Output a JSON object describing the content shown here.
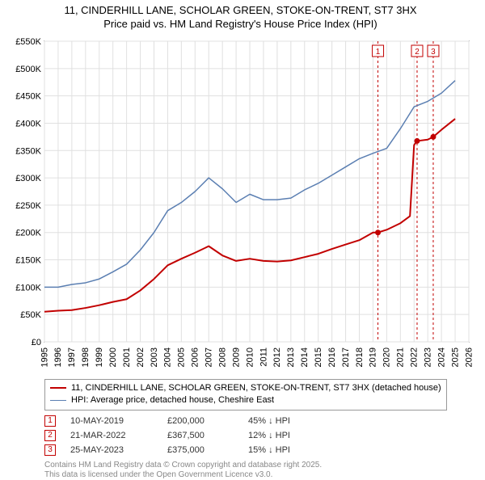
{
  "title_line1": "11, CINDERHILL LANE, SCHOLAR GREEN, STOKE-ON-TRENT, ST7 3HX",
  "title_line2": "Price paid vs. HM Land Registry's House Price Index (HPI)",
  "chart": {
    "type": "line",
    "background_color": "#ffffff",
    "grid_color": "#e0e0e0",
    "xlim": [
      1995,
      2026
    ],
    "ylim": [
      0,
      550000
    ],
    "x_ticks": [
      1995,
      1996,
      1997,
      1998,
      1999,
      2000,
      2001,
      2002,
      2003,
      2004,
      2005,
      2006,
      2007,
      2008,
      2009,
      2010,
      2011,
      2012,
      2013,
      2014,
      2015,
      2016,
      2017,
      2018,
      2019,
      2020,
      2021,
      2022,
      2023,
      2024,
      2025,
      2026
    ],
    "y_ticks": [
      0,
      50000,
      100000,
      150000,
      200000,
      250000,
      300000,
      350000,
      400000,
      450000,
      500000,
      550000
    ],
    "y_tick_labels": [
      "£0",
      "£50K",
      "£100K",
      "£150K",
      "£200K",
      "£250K",
      "£300K",
      "£350K",
      "£400K",
      "£450K",
      "£500K",
      "£550K"
    ],
    "series": [
      {
        "name": "Property price paid",
        "color": "#c20000",
        "stroke_width": 2,
        "data": [
          [
            1995,
            55000
          ],
          [
            1996,
            57000
          ],
          [
            1997,
            58000
          ],
          [
            1998,
            62000
          ],
          [
            1999,
            67000
          ],
          [
            2000,
            73000
          ],
          [
            2001,
            78000
          ],
          [
            2002,
            94000
          ],
          [
            2003,
            115000
          ],
          [
            2004,
            140000
          ],
          [
            2005,
            152000
          ],
          [
            2006,
            163000
          ],
          [
            2007,
            175000
          ],
          [
            2008,
            158000
          ],
          [
            2009,
            148000
          ],
          [
            2010,
            152000
          ],
          [
            2011,
            148000
          ],
          [
            2012,
            147000
          ],
          [
            2013,
            149000
          ],
          [
            2014,
            155000
          ],
          [
            2015,
            161000
          ],
          [
            2016,
            170000
          ],
          [
            2017,
            178000
          ],
          [
            2018,
            186000
          ],
          [
            2019,
            200000
          ],
          [
            2019.36,
            200000
          ],
          [
            2020,
            205000
          ],
          [
            2021,
            217000
          ],
          [
            2021.7,
            230000
          ],
          [
            2022,
            360000
          ],
          [
            2022.22,
            367500
          ],
          [
            2023,
            370000
          ],
          [
            2023.4,
            375000
          ],
          [
            2024,
            388000
          ],
          [
            2025,
            408000
          ]
        ],
        "sale_points": [
          {
            "x": 2019.36,
            "y": 200000
          },
          {
            "x": 2022.22,
            "y": 367500
          },
          {
            "x": 2023.4,
            "y": 375000
          }
        ]
      },
      {
        "name": "HPI detached Cheshire East",
        "color": "#5b7fb2",
        "stroke_width": 1.5,
        "data": [
          [
            1995,
            100000
          ],
          [
            1996,
            100000
          ],
          [
            1997,
            105000
          ],
          [
            1998,
            108000
          ],
          [
            1999,
            115000
          ],
          [
            2000,
            128000
          ],
          [
            2001,
            142000
          ],
          [
            2002,
            168000
          ],
          [
            2003,
            200000
          ],
          [
            2004,
            240000
          ],
          [
            2005,
            255000
          ],
          [
            2006,
            275000
          ],
          [
            2007,
            300000
          ],
          [
            2008,
            280000
          ],
          [
            2009,
            255000
          ],
          [
            2010,
            270000
          ],
          [
            2011,
            260000
          ],
          [
            2012,
            260000
          ],
          [
            2013,
            263000
          ],
          [
            2014,
            278000
          ],
          [
            2015,
            290000
          ],
          [
            2016,
            305000
          ],
          [
            2017,
            320000
          ],
          [
            2018,
            335000
          ],
          [
            2019,
            345000
          ],
          [
            2020,
            354000
          ],
          [
            2021,
            390000
          ],
          [
            2022,
            430000
          ],
          [
            2023,
            440000
          ],
          [
            2024,
            455000
          ],
          [
            2025,
            478000
          ]
        ]
      }
    ],
    "sale_markers": [
      {
        "label": "1",
        "x": 2019.36,
        "color": "#c20000"
      },
      {
        "label": "2",
        "x": 2022.22,
        "color": "#c20000"
      },
      {
        "label": "3",
        "x": 2023.4,
        "color": "#c20000"
      }
    ]
  },
  "legend": {
    "items": [
      {
        "color": "#c20000",
        "stroke_width": 2,
        "label": "11, CINDERHILL LANE, SCHOLAR GREEN, STOKE-ON-TRENT, ST7 3HX (detached house)"
      },
      {
        "color": "#5b7fb2",
        "stroke_width": 1.5,
        "label": "HPI: Average price, detached house, Cheshire East"
      }
    ]
  },
  "sales": [
    {
      "num": "1",
      "date": "10-MAY-2019",
      "price": "£200,000",
      "diff": "45% ↓ HPI",
      "marker_color": "#c20000"
    },
    {
      "num": "2",
      "date": "21-MAR-2022",
      "price": "£367,500",
      "diff": "12% ↓ HPI",
      "marker_color": "#c20000"
    },
    {
      "num": "3",
      "date": "25-MAY-2023",
      "price": "£375,000",
      "diff": "15% ↓ HPI",
      "marker_color": "#c20000"
    }
  ],
  "footer_line1": "Contains HM Land Registry data © Crown copyright and database right 2025.",
  "footer_line2": "This data is licensed under the Open Government Licence v3.0."
}
